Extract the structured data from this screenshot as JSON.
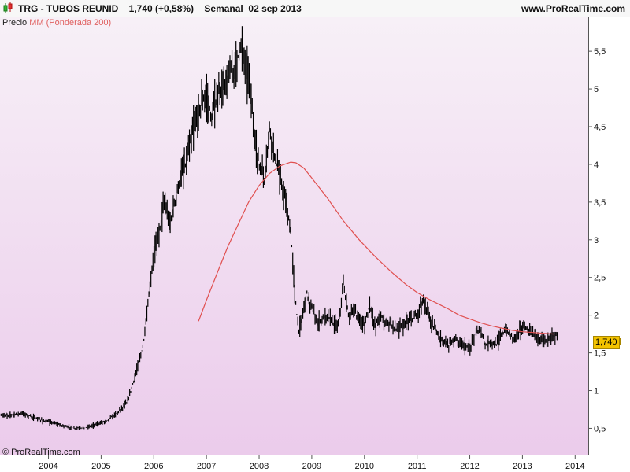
{
  "header": {
    "title": "TRG - TUBOS REUNID    1,740 (+0,58%)    Semanal  02 sep 2013",
    "site": "www.ProRealTime.com"
  },
  "legend": {
    "price_label": "Precio",
    "ma_label": "MM (Ponderada 200)"
  },
  "last_price_label": "1,740",
  "copyright": "© ProRealTime.com",
  "colors": {
    "background_top": "#f6eef6",
    "background_bottom": "#ecccec",
    "price": "#000000",
    "moving_average": "#e05050",
    "last_price_badge": "#f3c300"
  },
  "chart_data": {
    "type": "line",
    "title": "",
    "xlabel": "",
    "ylabel": "",
    "ylim": [
      0.15,
      5.95
    ],
    "xlim": [
      2003.08,
      2014.25
    ],
    "yticks": [
      "0,5",
      "1",
      "1,5",
      "2",
      "2,5",
      "3",
      "3,5",
      "4",
      "4,5",
      "5",
      "5,5"
    ],
    "xticks": [
      "2004",
      "2005",
      "2006",
      "2007",
      "2008",
      "2009",
      "2010",
      "2011",
      "2012",
      "2013",
      "2014"
    ],
    "grid": false,
    "legend_position": "top-left",
    "series": [
      {
        "name": "Precio",
        "x": [
          2003.1,
          2003.3,
          2003.5,
          2003.7,
          2003.9,
          2004.1,
          2004.3,
          2004.5,
          2004.7,
          2004.9,
          2005.1,
          2005.3,
          2005.5,
          2005.65,
          2005.8,
          2005.9,
          2006.0,
          2006.1,
          2006.2,
          2006.3,
          2006.4,
          2006.5,
          2006.6,
          2006.7,
          2006.8,
          2006.9,
          2007.0,
          2007.1,
          2007.2,
          2007.3,
          2007.45,
          2007.55,
          2007.65,
          2007.75,
          2007.82,
          2007.9,
          2008.0,
          2008.1,
          2008.2,
          2008.3,
          2008.4,
          2008.5,
          2008.6,
          2008.65,
          2008.7,
          2008.75,
          2008.8,
          2008.9,
          2009.0,
          2009.1,
          2009.2,
          2009.3,
          2009.4,
          2009.5,
          2009.6,
          2009.7,
          2009.8,
          2009.9,
          2010.0,
          2010.1,
          2010.2,
          2010.3,
          2010.4,
          2010.5,
          2010.6,
          2010.7,
          2010.8,
          2010.9,
          2011.0,
          2011.1,
          2011.2,
          2011.3,
          2011.4,
          2011.5,
          2011.6,
          2011.7,
          2011.8,
          2011.9,
          2012.0,
          2012.1,
          2012.2,
          2012.3,
          2012.4,
          2012.5,
          2012.6,
          2012.7,
          2012.8,
          2012.9,
          2013.0,
          2013.1,
          2013.2,
          2013.3,
          2013.4,
          2013.5,
          2013.6,
          2013.67
        ],
        "values": [
          0.67,
          0.68,
          0.7,
          0.65,
          0.6,
          0.57,
          0.53,
          0.5,
          0.51,
          0.55,
          0.6,
          0.7,
          0.85,
          1.2,
          1.6,
          2.2,
          2.8,
          3.1,
          3.5,
          3.2,
          3.5,
          3.8,
          4.0,
          4.3,
          4.6,
          4.8,
          4.9,
          4.6,
          4.9,
          5.0,
          5.2,
          5.3,
          5.6,
          5.3,
          5.1,
          4.4,
          4.0,
          3.8,
          4.5,
          4.1,
          3.8,
          3.5,
          3.1,
          2.6,
          2.1,
          1.8,
          1.9,
          2.3,
          2.1,
          1.9,
          1.95,
          2.0,
          1.9,
          1.85,
          2.4,
          2.0,
          2.05,
          1.95,
          1.85,
          2.15,
          1.85,
          2.0,
          1.9,
          1.9,
          1.8,
          1.85,
          1.9,
          1.95,
          2.0,
          2.2,
          2.05,
          1.85,
          1.75,
          1.65,
          1.6,
          1.7,
          1.65,
          1.6,
          1.55,
          1.75,
          1.8,
          1.6,
          1.65,
          1.6,
          1.75,
          1.8,
          1.7,
          1.75,
          1.85,
          1.8,
          1.75,
          1.7,
          1.65,
          1.68,
          1.72,
          1.74
        ]
      },
      {
        "name": "MM (Ponderada 200)",
        "x": [
          2006.85,
          2007.0,
          2007.2,
          2007.4,
          2007.6,
          2007.8,
          2008.0,
          2008.2,
          2008.4,
          2008.6,
          2008.7,
          2008.85,
          2009.0,
          2009.3,
          2009.6,
          2009.9,
          2010.2,
          2010.5,
          2010.8,
          2011.0,
          2011.2,
          2011.4,
          2011.6,
          2011.8,
          2012.0,
          2012.2,
          2012.4,
          2012.6,
          2012.8,
          2013.0,
          2013.2,
          2013.4,
          2013.6
        ],
        "values": [
          1.92,
          2.2,
          2.55,
          2.9,
          3.2,
          3.5,
          3.72,
          3.88,
          3.98,
          4.03,
          4.02,
          3.95,
          3.82,
          3.55,
          3.25,
          3.0,
          2.78,
          2.58,
          2.4,
          2.3,
          2.22,
          2.15,
          2.08,
          2.0,
          1.95,
          1.9,
          1.86,
          1.83,
          1.8,
          1.78,
          1.77,
          1.76,
          1.75
        ]
      }
    ]
  }
}
